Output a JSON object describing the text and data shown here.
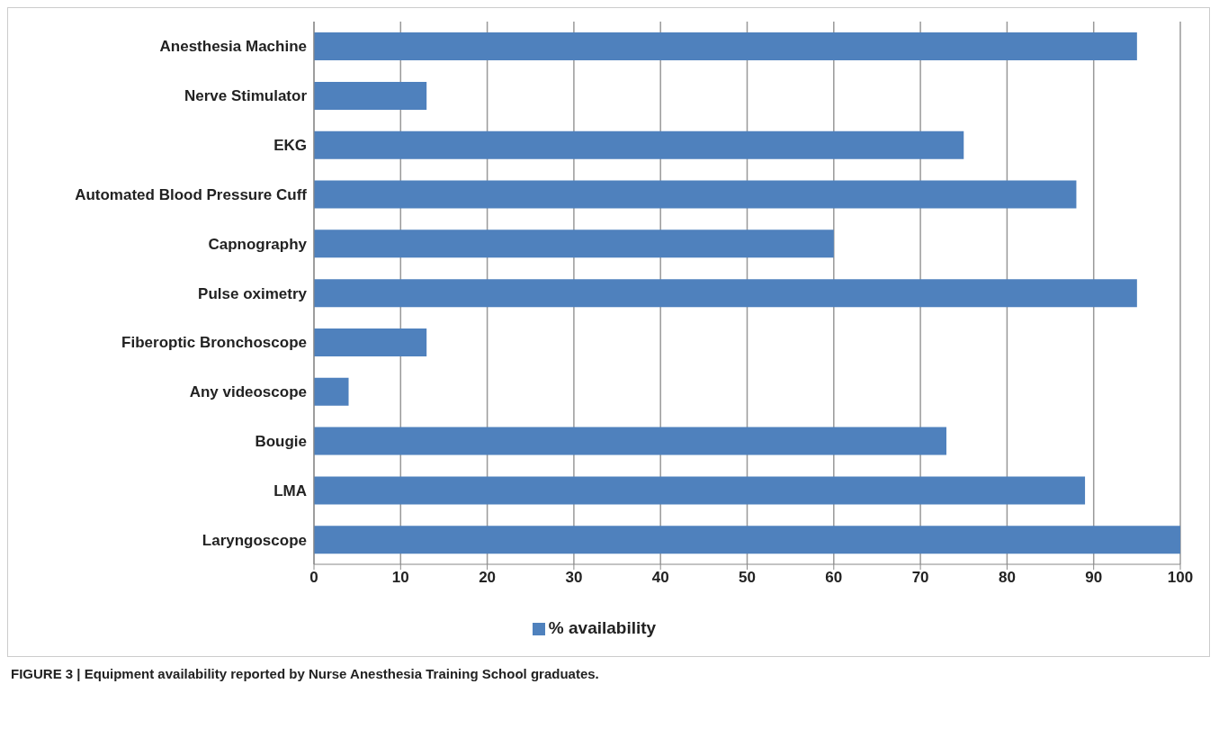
{
  "chart_data": {
    "type": "bar",
    "orientation": "horizontal",
    "categories": [
      "Anesthesia Machine",
      "Nerve Stimulator",
      "EKG",
      "Automated Blood Pressure Cuff",
      "Capnography",
      "Pulse oximetry",
      "Fiberoptic Bronchoscope",
      "Any videoscope",
      "Bougie",
      "LMA",
      "Laryngoscope"
    ],
    "series": [
      {
        "name": "% availability",
        "color": "#4f81bd",
        "values": [
          95,
          13,
          75,
          88,
          60,
          95,
          13,
          4,
          73,
          89,
          100
        ]
      }
    ],
    "xlim": [
      0,
      100
    ],
    "xticks": [
      0,
      10,
      20,
      30,
      40,
      50,
      60,
      70,
      80,
      90,
      100
    ],
    "grid": "x",
    "legend": "bottom",
    "annotations": [
      "FIGURE 3 | Equipment availability reported by Nurse Anesthesia Training School graduates."
    ]
  }
}
